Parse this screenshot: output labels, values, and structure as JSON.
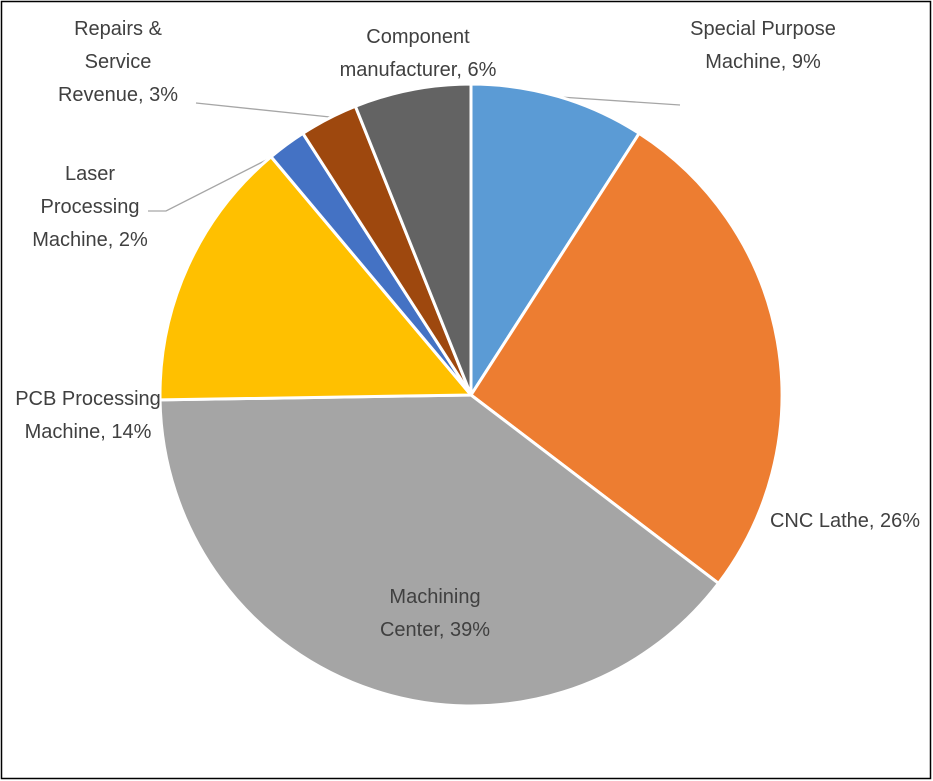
{
  "chart_data": {
    "type": "pie",
    "categories": [
      "Special Purpose Machine",
      "CNC Lathe",
      "Machining Center",
      "PCB Processing Machine",
      "Laser Processing Machine",
      "Repairs & Service Revenue",
      "Component manufacturer"
    ],
    "values": [
      9,
      26,
      39,
      14,
      2,
      3,
      6
    ],
    "value_labels": [
      "Special Purpose Machine, 9%",
      "CNC Lathe, 26%",
      "Machining Center, 39%",
      "PCB Processing Machine, 14%",
      "Laser Processing Machine, 2%",
      "Repairs & Service Revenue, 3%",
      "Component manufacturer, 6%"
    ],
    "colors": [
      "#5b9bd5",
      "#ed7d31",
      "#a5a5a5",
      "#ffc000",
      "#4472c4",
      "#9e480e",
      "#636363"
    ]
  }
}
